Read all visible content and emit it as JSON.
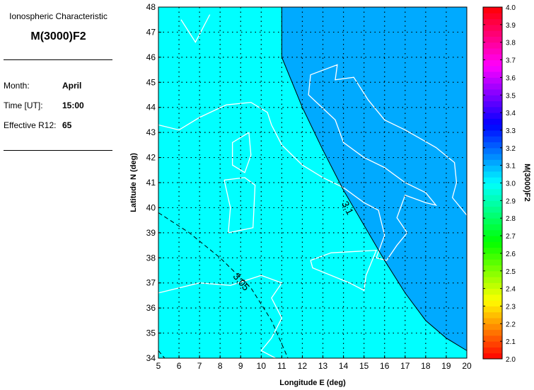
{
  "panel": {
    "subtitle": "Ionospheric Characteristic",
    "title": "M(3000)F2",
    "fields": [
      {
        "label": "Month:",
        "value": "April"
      },
      {
        "label": "Time [UT]:",
        "value": "15:00"
      },
      {
        "label": "Effective R12:",
        "value": "65"
      }
    ]
  },
  "chart_data": {
    "type": "contour map",
    "xlabel": "Longitude E (deg)",
    "ylabel": "Latitude N (deg)",
    "xlim": [
      5,
      20
    ],
    "ylim": [
      34,
      48
    ],
    "xticks": [
      "5",
      "6",
      "7",
      "8",
      "9",
      "10",
      "11",
      "12",
      "13",
      "14",
      "15",
      "16",
      "17",
      "18",
      "19",
      "20"
    ],
    "yticks": [
      "34",
      "35",
      "36",
      "37",
      "38",
      "39",
      "40",
      "41",
      "42",
      "43",
      "44",
      "45",
      "46",
      "47",
      "48"
    ],
    "grid": true,
    "contours": [
      {
        "label": "3.1",
        "style": "solid",
        "points": [
          [
            11,
            48
          ],
          [
            11,
            46
          ],
          [
            12,
            44
          ],
          [
            13,
            42.3
          ],
          [
            14,
            40.7
          ],
          [
            15,
            39.3
          ],
          [
            16,
            37.9
          ],
          [
            17,
            36.6
          ],
          [
            18,
            35.5
          ],
          [
            19,
            34.8
          ],
          [
            20,
            34.3
          ]
        ]
      },
      {
        "label": "3.05",
        "style": "dashed",
        "points": [
          [
            5,
            39.8
          ],
          [
            6.5,
            39
          ],
          [
            8,
            38
          ],
          [
            9.5,
            36.8
          ],
          [
            10.5,
            35.5
          ],
          [
            11.3,
            34
          ]
        ]
      }
    ],
    "regions": [
      {
        "range": "3.0-3.05",
        "color": "#00ffff"
      },
      {
        "range": "3.1-3.15",
        "color": "#00aaff"
      }
    ],
    "colorbar": {
      "label": "M(3000)F2",
      "range": [
        2.0,
        4.0
      ],
      "ticks": [
        "2.0",
        "2.1",
        "2.2",
        "2.3",
        "2.4",
        "2.5",
        "2.6",
        "2.7",
        "2.8",
        "2.9",
        "3.0",
        "3.1",
        "3.2",
        "3.3",
        "3.4",
        "3.5",
        "3.6",
        "3.7",
        "3.8",
        "3.9",
        "4.0"
      ]
    }
  }
}
